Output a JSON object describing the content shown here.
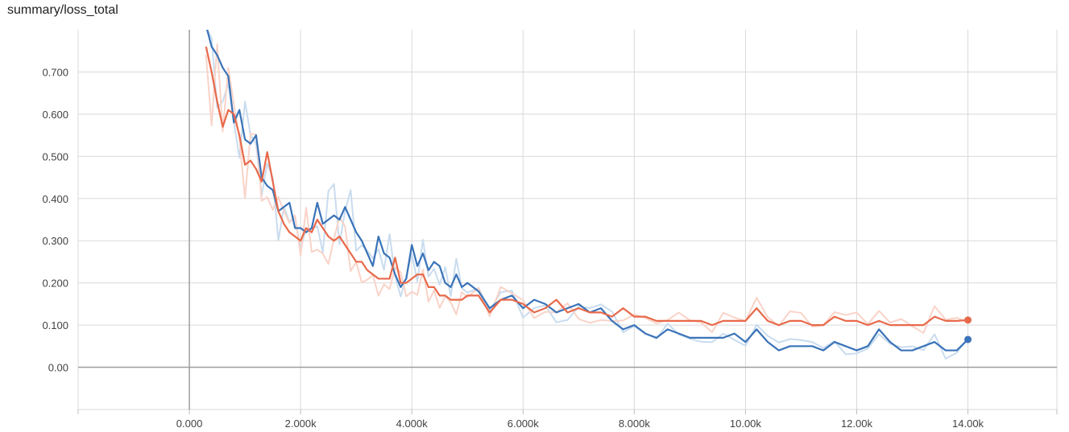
{
  "title": "summary/loss_total",
  "chart_data": {
    "type": "line",
    "title": "summary/loss_total",
    "xlabel": "",
    "ylabel": "",
    "xlim": [
      -2000,
      15600
    ],
    "ylim": [
      -0.1,
      0.8
    ],
    "grid": true,
    "x_ticks": [
      0,
      2000,
      4000,
      6000,
      8000,
      10000,
      12000,
      14000
    ],
    "x_tick_labels": [
      "0.000",
      "2.000k",
      "4.000k",
      "6.000k",
      "8.000k",
      "10.00k",
      "12.00k",
      "14.00k"
    ],
    "y_ticks": [
      0.0,
      0.1,
      0.2,
      0.3,
      0.4,
      0.5,
      0.6,
      0.7
    ],
    "y_tick_labels": [
      "0.00",
      "0.100",
      "0.200",
      "0.300",
      "0.400",
      "0.500",
      "0.600",
      "0.700"
    ],
    "series": [
      {
        "color": "#3a73b8",
        "raw_color": "#c9dcef",
        "x": [
          300,
          400,
          500,
          600,
          700,
          800,
          900,
          1000,
          1100,
          1200,
          1300,
          1400,
          1500,
          1600,
          1700,
          1800,
          1900,
          2000,
          2100,
          2200,
          2300,
          2400,
          2500,
          2600,
          2700,
          2800,
          2900,
          3000,
          3100,
          3200,
          3300,
          3400,
          3500,
          3600,
          3700,
          3800,
          3900,
          4000,
          4100,
          4200,
          4300,
          4400,
          4500,
          4600,
          4700,
          4800,
          4900,
          5000,
          5200,
          5400,
          5600,
          5800,
          6000,
          6200,
          6400,
          6600,
          6800,
          7000,
          7200,
          7400,
          7600,
          7800,
          8000,
          8200,
          8400,
          8600,
          8800,
          9000,
          9200,
          9400,
          9600,
          9800,
          10000,
          10200,
          10400,
          10600,
          10800,
          11000,
          11200,
          11400,
          11600,
          11800,
          12000,
          12200,
          12400,
          12600,
          12800,
          13000,
          13200,
          13400,
          13600,
          13800,
          14000
        ],
        "values": [
          0.81,
          0.76,
          0.74,
          0.71,
          0.69,
          0.58,
          0.61,
          0.54,
          0.53,
          0.55,
          0.45,
          0.43,
          0.42,
          0.37,
          0.38,
          0.39,
          0.33,
          0.33,
          0.32,
          0.33,
          0.39,
          0.34,
          0.35,
          0.36,
          0.35,
          0.38,
          0.35,
          0.32,
          0.3,
          0.27,
          0.24,
          0.31,
          0.27,
          0.26,
          0.22,
          0.19,
          0.21,
          0.29,
          0.24,
          0.27,
          0.23,
          0.25,
          0.24,
          0.2,
          0.19,
          0.22,
          0.19,
          0.2,
          0.18,
          0.14,
          0.16,
          0.17,
          0.14,
          0.16,
          0.15,
          0.13,
          0.14,
          0.15,
          0.13,
          0.14,
          0.11,
          0.09,
          0.1,
          0.08,
          0.07,
          0.09,
          0.08,
          0.07,
          0.07,
          0.07,
          0.07,
          0.08,
          0.06,
          0.09,
          0.06,
          0.04,
          0.05,
          0.05,
          0.05,
          0.04,
          0.06,
          0.05,
          0.04,
          0.05,
          0.09,
          0.06,
          0.04,
          0.04,
          0.05,
          0.06,
          0.04,
          0.04,
          0.066
        ]
      },
      {
        "color": "#e8694a",
        "raw_color": "#f9d3c8",
        "x": [
          300,
          400,
          500,
          600,
          700,
          800,
          900,
          1000,
          1100,
          1200,
          1300,
          1400,
          1500,
          1600,
          1700,
          1800,
          1900,
          2000,
          2100,
          2200,
          2300,
          2400,
          2500,
          2600,
          2700,
          2800,
          2900,
          3000,
          3100,
          3200,
          3300,
          3400,
          3500,
          3600,
          3700,
          3800,
          3900,
          4000,
          4100,
          4200,
          4300,
          4400,
          4500,
          4600,
          4700,
          4800,
          4900,
          5000,
          5200,
          5400,
          5600,
          5800,
          6000,
          6200,
          6400,
          6600,
          6800,
          7000,
          7200,
          7400,
          7600,
          7800,
          8000,
          8200,
          8400,
          8600,
          8800,
          9000,
          9200,
          9400,
          9600,
          9800,
          10000,
          10200,
          10400,
          10600,
          10800,
          11000,
          11200,
          11400,
          11600,
          11800,
          12000,
          12200,
          12400,
          12600,
          12800,
          13000,
          13200,
          13400,
          13600,
          13800,
          14000
        ],
        "values": [
          0.76,
          0.7,
          0.63,
          0.57,
          0.61,
          0.6,
          0.55,
          0.48,
          0.49,
          0.47,
          0.44,
          0.51,
          0.44,
          0.37,
          0.34,
          0.32,
          0.31,
          0.3,
          0.33,
          0.32,
          0.35,
          0.33,
          0.31,
          0.3,
          0.31,
          0.29,
          0.27,
          0.25,
          0.25,
          0.23,
          0.22,
          0.21,
          0.21,
          0.21,
          0.26,
          0.2,
          0.2,
          0.21,
          0.22,
          0.22,
          0.19,
          0.19,
          0.17,
          0.17,
          0.16,
          0.16,
          0.16,
          0.17,
          0.17,
          0.13,
          0.16,
          0.16,
          0.15,
          0.13,
          0.14,
          0.16,
          0.13,
          0.14,
          0.13,
          0.13,
          0.12,
          0.14,
          0.12,
          0.12,
          0.11,
          0.11,
          0.11,
          0.11,
          0.11,
          0.1,
          0.11,
          0.11,
          0.11,
          0.14,
          0.11,
          0.1,
          0.11,
          0.11,
          0.1,
          0.1,
          0.12,
          0.11,
          0.11,
          0.1,
          0.11,
          0.1,
          0.1,
          0.1,
          0.1,
          0.12,
          0.11,
          0.11,
          0.112
        ]
      }
    ]
  }
}
